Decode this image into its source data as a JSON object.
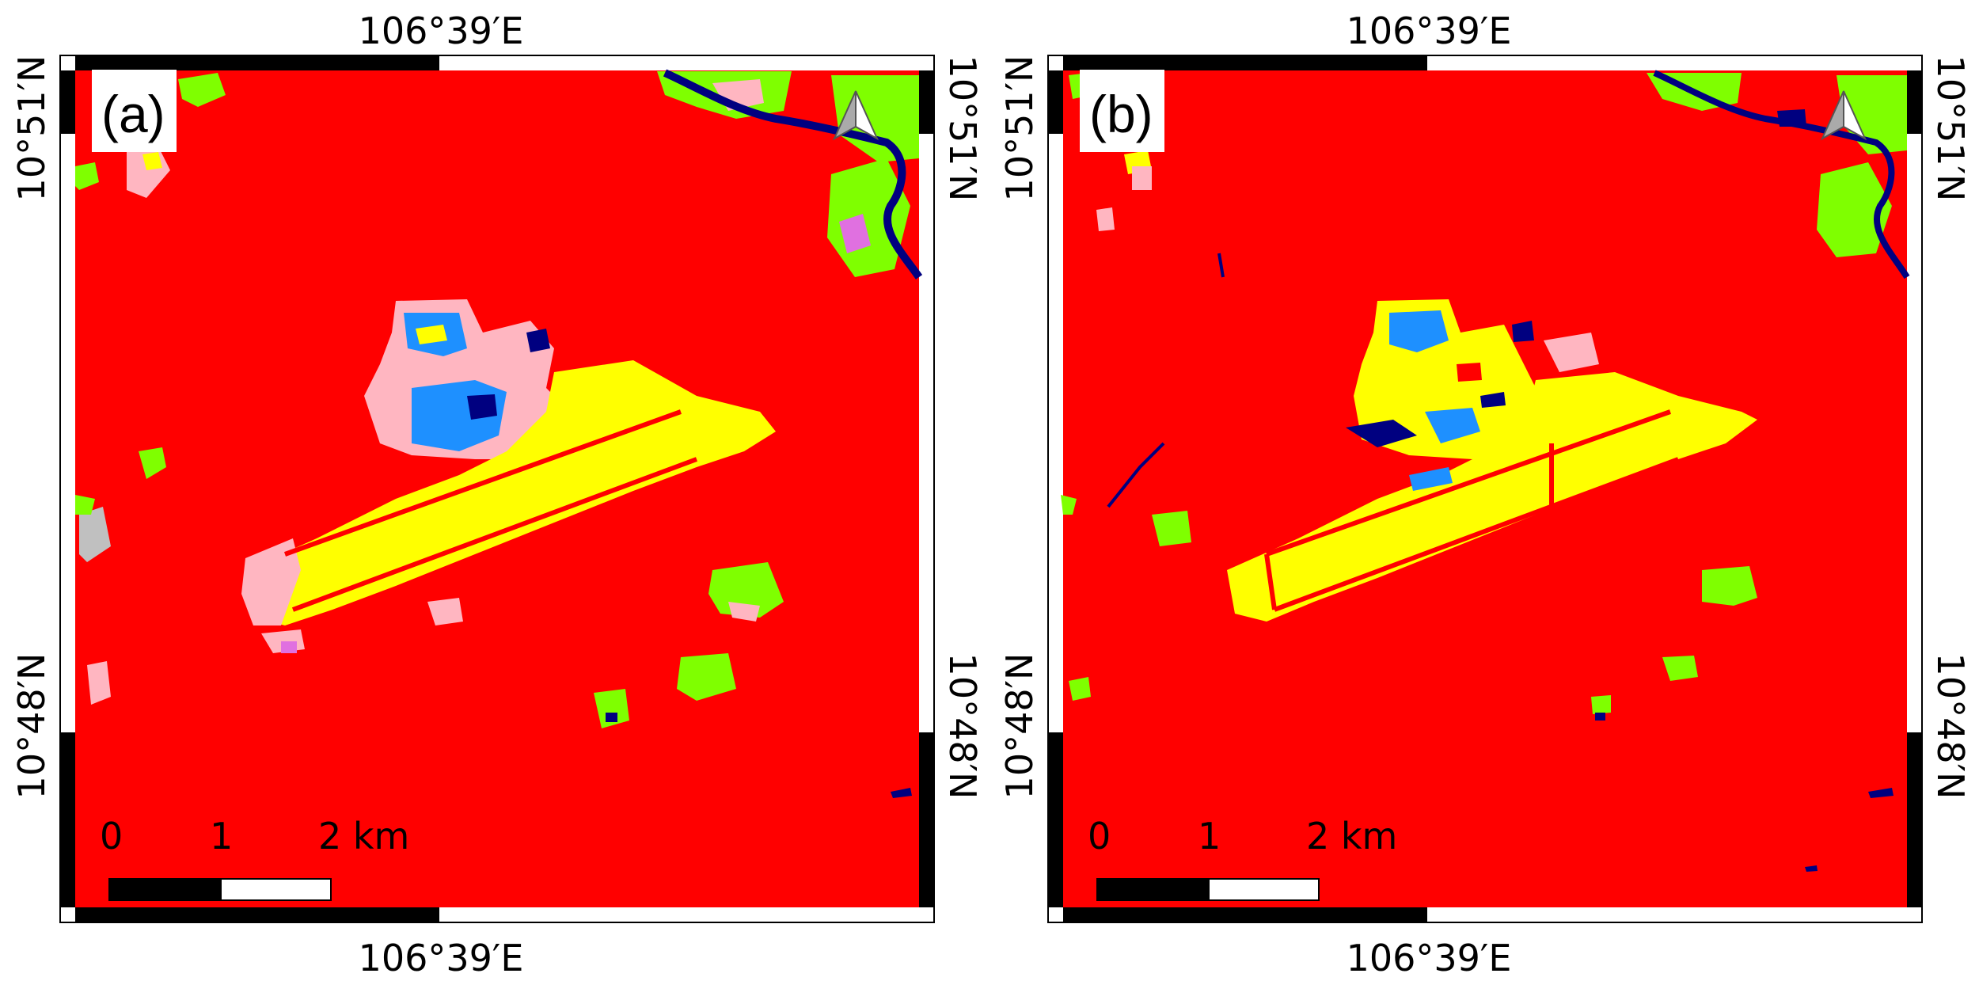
{
  "panels": [
    {
      "label": "(a)",
      "top_lon": "106°39′E",
      "bottom_lon": "106°39′E",
      "lat_north_left": "10°51′N",
      "lat_south_left": "10°48′N",
      "lat_north_right": "10°51′N",
      "lat_south_right": "10°48′N",
      "scale_labels": [
        "0",
        "1",
        "2 km"
      ]
    },
    {
      "label": "(b)",
      "top_lon": "106°39′E",
      "bottom_lon": "106°39′E",
      "lat_north_left": "10°51′N",
      "lat_south_left": "10°48′N",
      "lat_north_right": "10°51′N",
      "lat_south_right": "10°48′N",
      "scale_labels": [
        "0",
        "1",
        "2 km"
      ]
    }
  ],
  "colors": {
    "background_class": "#ff0000",
    "runway_class": "#ffff00",
    "pink_class": "#ffb6c1",
    "vegetation_class": "#7fff00",
    "water_class": "#000080",
    "blue_class": "#1e90ff",
    "gray_class": "#c0c0c0",
    "magenta_class": "#e070e0"
  },
  "icons": {
    "north_arrow": "north-arrow-icon"
  }
}
